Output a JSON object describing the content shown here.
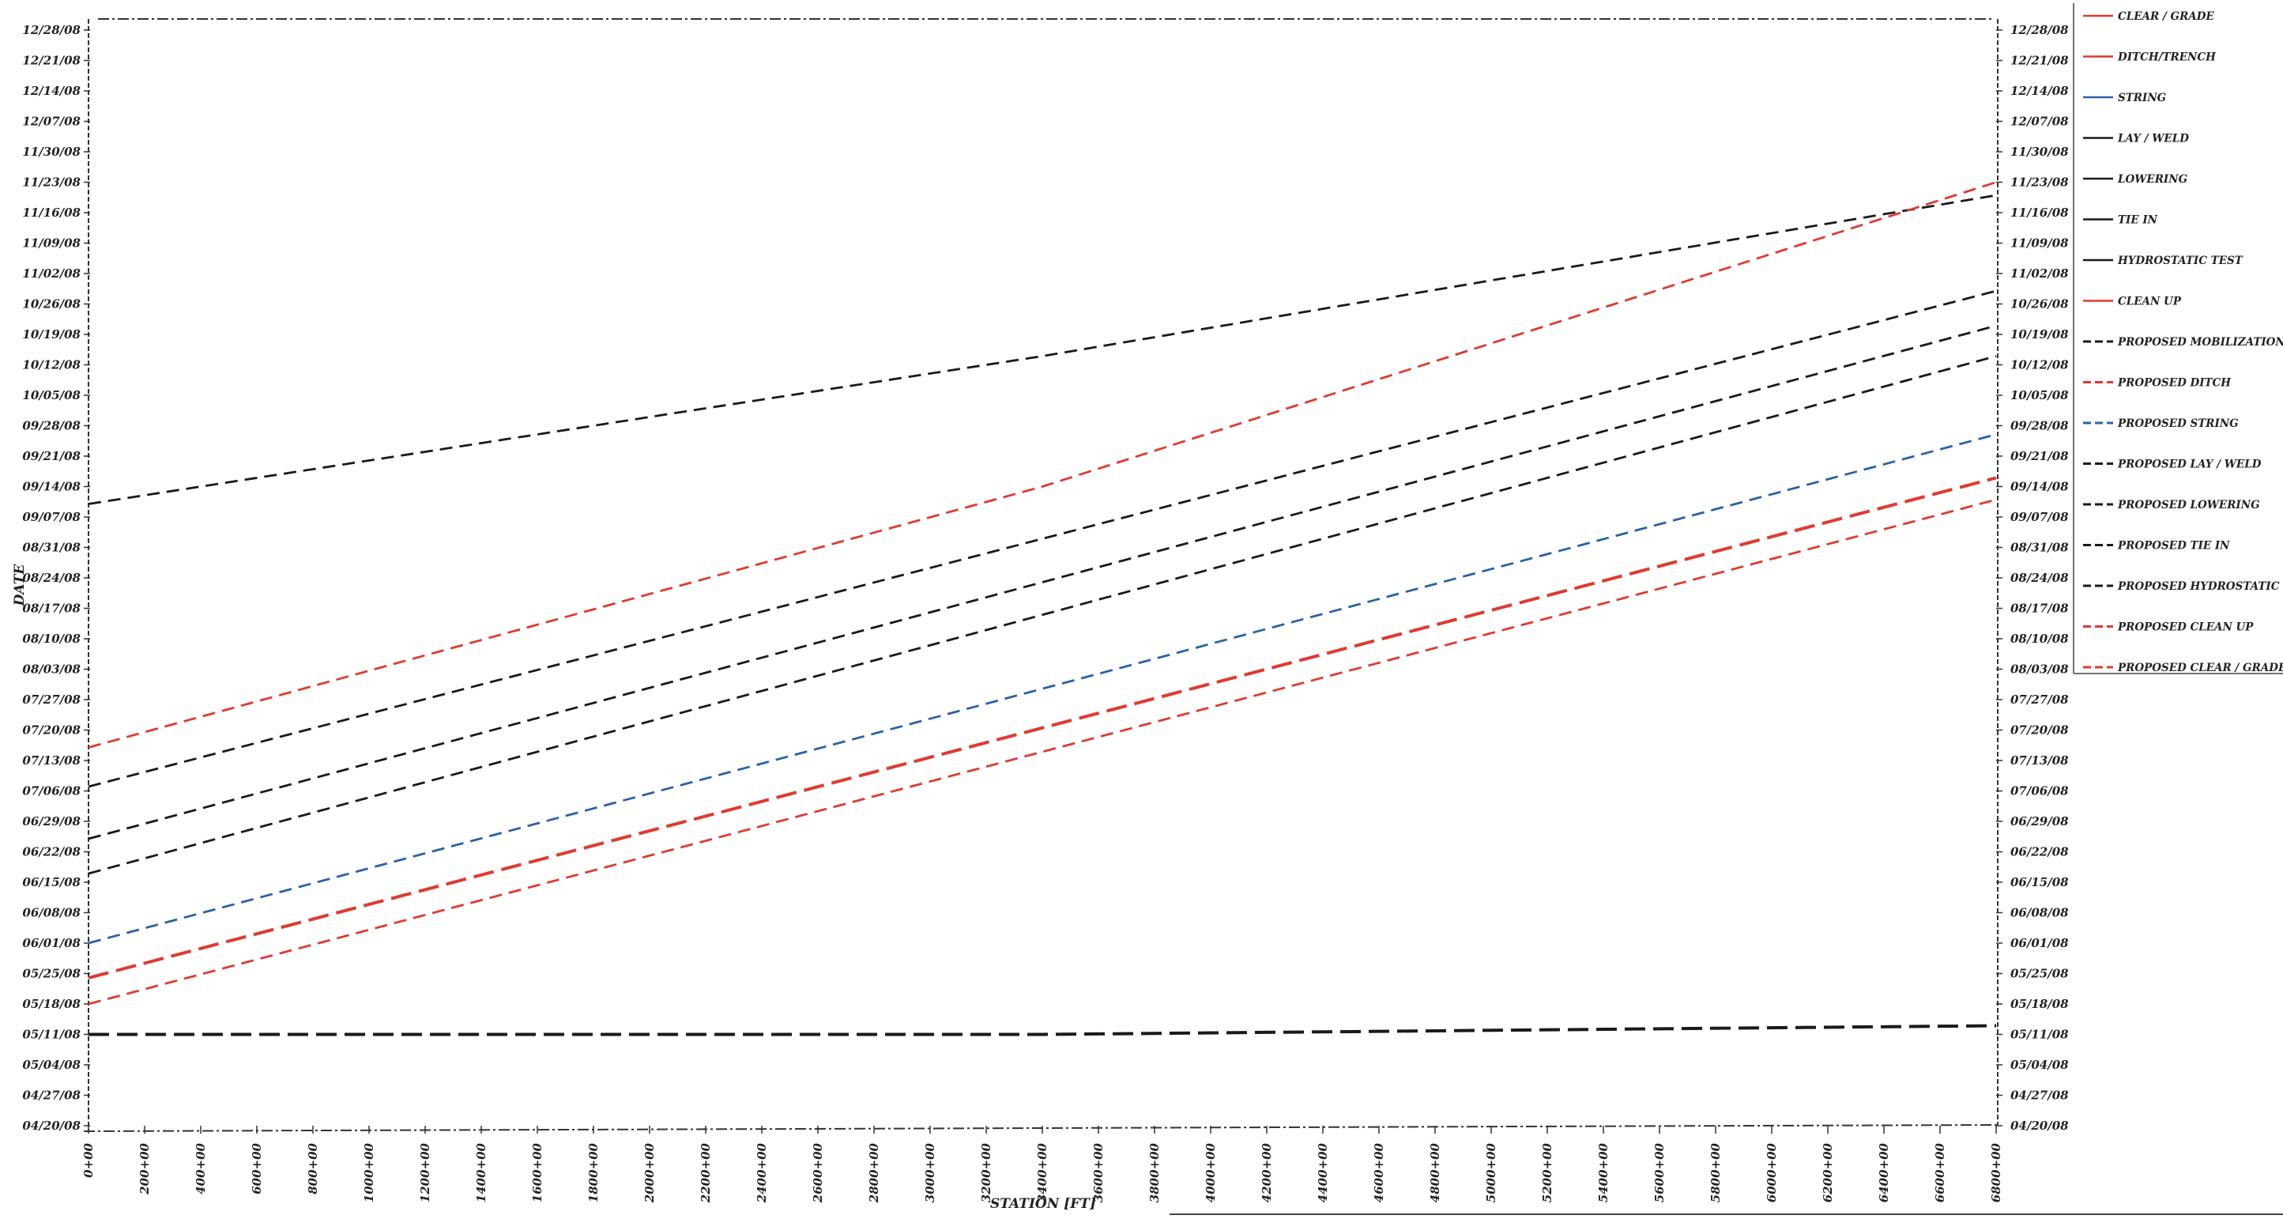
{
  "chart_data": {
    "type": "line",
    "title": "",
    "xlabel": "STATION [FT]",
    "ylabel": "DATE",
    "x_ticks": [
      "0+00",
      "200+00",
      "400+00",
      "600+00",
      "800+00",
      "1000+00",
      "1200+00",
      "1400+00",
      "1600+00",
      "1800+00",
      "2000+00",
      "2200+00",
      "2400+00",
      "2600+00",
      "2800+00",
      "3000+00",
      "3200+00",
      "3400+00",
      "3600+00",
      "3800+00",
      "4000+00",
      "4200+00",
      "4400+00",
      "4600+00",
      "4800+00",
      "5000+00",
      "5200+00",
      "5400+00",
      "5600+00",
      "5800+00",
      "6000+00",
      "6200+00",
      "6400+00",
      "6600+00",
      "6800+00"
    ],
    "y_ticks": [
      "04/20/08",
      "04/27/08",
      "05/04/08",
      "05/11/08",
      "05/18/08",
      "05/25/08",
      "06/01/08",
      "06/08/08",
      "06/15/08",
      "06/22/08",
      "06/29/08",
      "07/06/08",
      "07/13/08",
      "07/20/08",
      "07/27/08",
      "08/03/08",
      "08/10/08",
      "08/17/08",
      "08/24/08",
      "08/31/08",
      "09/07/08",
      "09/14/08",
      "09/21/08",
      "09/28/08",
      "10/05/08",
      "10/12/08",
      "10/19/08",
      "10/26/08",
      "11/02/08",
      "11/09/08",
      "11/16/08",
      "11/23/08",
      "11/30/08",
      "12/07/08",
      "12/14/08",
      "12/21/08",
      "12/28/08"
    ],
    "xlim": [
      0,
      680000
    ],
    "ylim": [
      "04/20/08",
      "12/28/08"
    ],
    "grid": false,
    "legend_position": "top-right",
    "series": [
      {
        "name": "CLEAR / GRADE",
        "color": "#e03a30",
        "dashed": false,
        "points": []
      },
      {
        "name": "DITCH/TRENCH",
        "color": "#e03a30",
        "dashed": false,
        "points": []
      },
      {
        "name": "STRING",
        "color": "#2a62a8",
        "dashed": false,
        "points": []
      },
      {
        "name": "LAY / WELD",
        "color": "#1a1a1a",
        "dashed": false,
        "points": []
      },
      {
        "name": "LOWERING",
        "color": "#1a1a1a",
        "dashed": false,
        "points": []
      },
      {
        "name": "TIE IN",
        "color": "#1a1a1a",
        "dashed": false,
        "points": []
      },
      {
        "name": "HYDROSTATIC TEST",
        "color": "#1a1a1a",
        "dashed": false,
        "points": []
      },
      {
        "name": "CLEAN UP",
        "color": "#e03a30",
        "dashed": false,
        "points": []
      },
      {
        "name": "PROPOSED MOBILIZATION",
        "color": "#1a1a1a",
        "dashed": true,
        "heavy": true,
        "points": [
          {
            "x": 0,
            "y": "05/11/08"
          },
          {
            "x": 340000,
            "y": "05/11/08"
          },
          {
            "x": 680000,
            "y": "05/13/08"
          }
        ]
      },
      {
        "name": "PROPOSED DITCH",
        "color": "#e03a30",
        "dashed": true,
        "heavy": true,
        "points": [
          {
            "x": 0,
            "y": "05/24/08"
          },
          {
            "x": 680000,
            "y": "09/16/08"
          }
        ]
      },
      {
        "name": "PROPOSED STRING",
        "color": "#2a62a8",
        "dashed": true,
        "points": [
          {
            "x": 0,
            "y": "06/01/08"
          },
          {
            "x": 680000,
            "y": "09/26/08"
          }
        ]
      },
      {
        "name": "PROPOSED LAY / WELD",
        "color": "#1a1a1a",
        "dashed": true,
        "points": [
          {
            "x": 0,
            "y": "06/17/08"
          },
          {
            "x": 680000,
            "y": "10/14/08"
          }
        ]
      },
      {
        "name": "PROPOSED LOWERING",
        "color": "#1a1a1a",
        "dashed": true,
        "points": [
          {
            "x": 0,
            "y": "06/25/08"
          },
          {
            "x": 680000,
            "y": "10/21/08"
          }
        ]
      },
      {
        "name": "PROPOSED TIE IN",
        "color": "#1a1a1a",
        "dashed": true,
        "points": [
          {
            "x": 0,
            "y": "07/07/08"
          },
          {
            "x": 680000,
            "y": "10/29/08"
          }
        ]
      },
      {
        "name": "PROPOSED HYDROSTATIC TEST",
        "color": "#1a1a1a",
        "dashed": true,
        "points": [
          {
            "x": 0,
            "y": "09/10/08"
          },
          {
            "x": 340000,
            "y": "10/14/08"
          },
          {
            "x": 680000,
            "y": "11/20/08"
          }
        ]
      },
      {
        "name": "PROPOSED CLEAN UP",
        "color": "#e03a30",
        "dashed": true,
        "points": [
          {
            "x": 0,
            "y": "07/16/08"
          },
          {
            "x": 340000,
            "y": "09/14/08"
          },
          {
            "x": 680000,
            "y": "11/23/08"
          }
        ]
      },
      {
        "name": "PROPOSED CLEAR / GRADE",
        "color": "#e03a30",
        "dashed": true,
        "points": [
          {
            "x": 0,
            "y": "05/18/08"
          },
          {
            "x": 680000,
            "y": "09/11/08"
          }
        ]
      }
    ]
  }
}
